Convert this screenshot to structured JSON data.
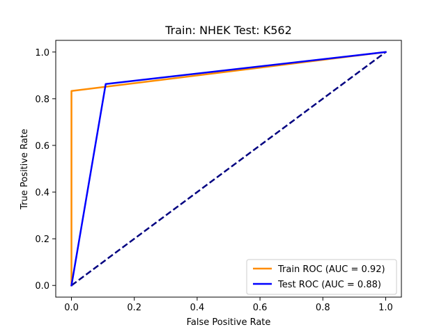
{
  "chart_data": {
    "type": "line",
    "title": "Train: NHEK   Test: K562",
    "xlabel": "False Positive Rate",
    "ylabel": "True Positive Rate",
    "xlim": [
      -0.05,
      1.05
    ],
    "ylim": [
      -0.05,
      1.05
    ],
    "xticks": [
      0.0,
      0.2,
      0.4,
      0.6,
      0.8,
      1.0
    ],
    "yticks": [
      0.0,
      0.2,
      0.4,
      0.6,
      0.8,
      1.0
    ],
    "xtick_labels": [
      "0.0",
      "0.2",
      "0.4",
      "0.6",
      "0.8",
      "1.0"
    ],
    "ytick_labels": [
      "0.0",
      "0.2",
      "0.4",
      "0.6",
      "0.8",
      "1.0"
    ],
    "grid": false,
    "legend_position": "lower-right",
    "series": [
      {
        "name": "Train ROC (AUC = 0.92)",
        "color": "#ff8c00",
        "dash": "solid",
        "x": [
          0.0,
          0.0,
          1.0
        ],
        "y": [
          0.0,
          0.833,
          1.0
        ]
      },
      {
        "name": "Test ROC (AUC = 0.88)",
        "color": "#0000ff",
        "dash": "solid",
        "x": [
          0.0,
          0.109,
          1.0
        ],
        "y": [
          0.0,
          0.863,
          1.0
        ]
      },
      {
        "color": "#000080",
        "dash": "dashed",
        "x": [
          0.0,
          1.0
        ],
        "y": [
          0.0,
          1.0
        ]
      }
    ]
  }
}
